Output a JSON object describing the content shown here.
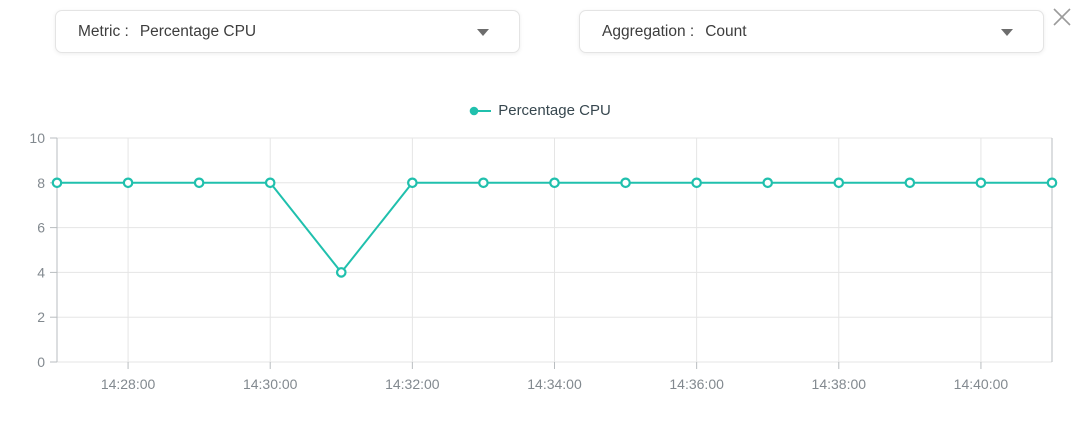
{
  "colors": {
    "accent": "#20c0ad",
    "axis_label": "#82898f",
    "grid": "#e5e5e5",
    "axis": "#b9bdc0",
    "text": "#3d3d3d",
    "legend_text": "#37474f",
    "close_icon": "#9b9b9b",
    "arrow": "#6d6d6d"
  },
  "controls": {
    "metric": {
      "label": "Metric :",
      "value": "Percentage CPU"
    },
    "aggregation": {
      "label": "Aggregation :",
      "value": "Count"
    }
  },
  "legend": {
    "label": "Percentage CPU"
  },
  "chart_data": {
    "type": "line",
    "title": "",
    "x": [
      "14:27:00",
      "14:28:00",
      "14:29:00",
      "14:30:00",
      "14:31:00",
      "14:32:00",
      "14:33:00",
      "14:34:00",
      "14:35:00",
      "14:36:00",
      "14:37:00",
      "14:38:00",
      "14:39:00",
      "14:40:00",
      "14:41:00"
    ],
    "series": [
      {
        "name": "Percentage CPU",
        "values": [
          8,
          8,
          8,
          8,
          4,
          8,
          8,
          8,
          8,
          8,
          8,
          8,
          8,
          8,
          8
        ]
      }
    ],
    "x_tick_indices": [
      1,
      3,
      5,
      7,
      9,
      11,
      13
    ],
    "y_ticks": [
      0,
      2,
      4,
      6,
      8,
      10
    ],
    "ylim": [
      0,
      10
    ],
    "xlabel": "",
    "ylabel": "",
    "grid": true,
    "legend_position": "top-center",
    "marker": "hollow-circle"
  }
}
